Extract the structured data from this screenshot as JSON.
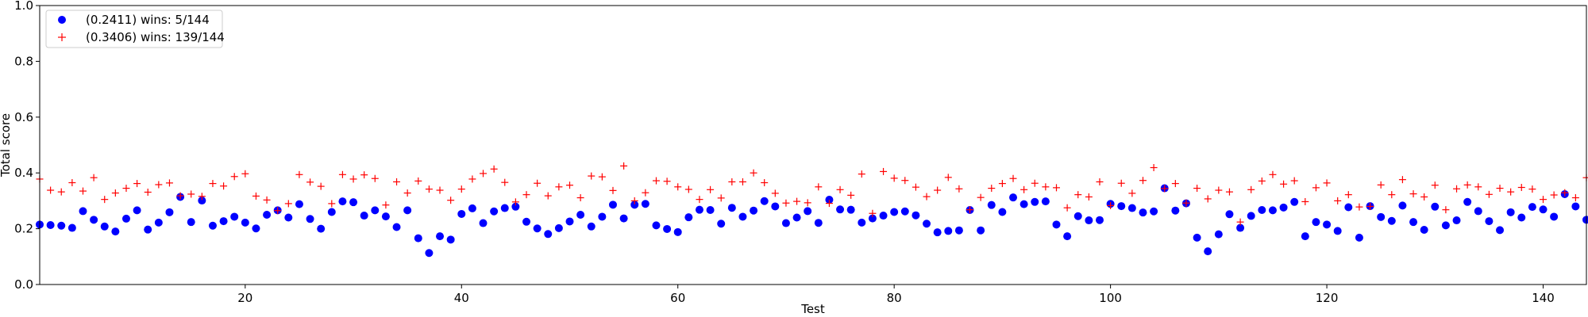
{
  "chart_data": {
    "type": "scatter",
    "title": "",
    "xlabel": "Test",
    "ylabel": "Total score",
    "xlim": [
      1,
      144
    ],
    "ylim": [
      0.0,
      1.0
    ],
    "xticks": [
      20,
      40,
      60,
      80,
      100,
      120,
      140
    ],
    "yticks": [
      0.0,
      0.2,
      0.4,
      0.6,
      0.8,
      1.0
    ],
    "xtick_labels": [
      "20",
      "40",
      "60",
      "80",
      "100",
      "120",
      "140"
    ],
    "ytick_labels": [
      "0.0",
      "0.2",
      "0.4",
      "0.6",
      "0.8",
      "1.0"
    ],
    "grid": false,
    "legend_position": "top-left",
    "series": [
      {
        "name": "(0.2411) wins: 5/144",
        "marker": "circle",
        "color": "#0000ff",
        "values": [
          0.215,
          0.213,
          0.211,
          0.203,
          0.263,
          0.232,
          0.208,
          0.19,
          0.236,
          0.266,
          0.197,
          0.222,
          0.259,
          0.314,
          0.224,
          0.301,
          0.211,
          0.227,
          0.243,
          0.222,
          0.201,
          0.25,
          0.266,
          0.24,
          0.288,
          0.235,
          0.2,
          0.26,
          0.298,
          0.295,
          0.247,
          0.266,
          0.244,
          0.206,
          0.266,
          0.166,
          0.113,
          0.173,
          0.161,
          0.253,
          0.273,
          0.22,
          0.262,
          0.274,
          0.279,
          0.225,
          0.201,
          0.181,
          0.202,
          0.226,
          0.25,
          0.208,
          0.243,
          0.286,
          0.237,
          0.286,
          0.289,
          0.212,
          0.199,
          0.188,
          0.241,
          0.268,
          0.267,
          0.218,
          0.275,
          0.243,
          0.265,
          0.299,
          0.28,
          0.22,
          0.24,
          0.263,
          0.221,
          0.304,
          0.269,
          0.268,
          0.222,
          0.237,
          0.247,
          0.26,
          0.262,
          0.248,
          0.218,
          0.187,
          0.192,
          0.194,
          0.267,
          0.194,
          0.285,
          0.26,
          0.312,
          0.288,
          0.296,
          0.298,
          0.215,
          0.173,
          0.245,
          0.23,
          0.231,
          0.289,
          0.281,
          0.274,
          0.258,
          0.262,
          0.345,
          0.265,
          0.291,
          0.168,
          0.119,
          0.18,
          0.252,
          0.203,
          0.246,
          0.267,
          0.266,
          0.276,
          0.296,
          0.173,
          0.224,
          0.215,
          0.192,
          0.277,
          0.168,
          0.281,
          0.242,
          0.228,
          0.283,
          0.224,
          0.196,
          0.279,
          0.212,
          0.23,
          0.296,
          0.263,
          0.227,
          0.195,
          0.259,
          0.24,
          0.278,
          0.269,
          0.243,
          0.324,
          0.28,
          0.232
        ]
      },
      {
        "name": "(0.3406) wins: 139/144",
        "marker": "plus",
        "color": "#ff0000",
        "values": [
          0.378,
          0.338,
          0.332,
          0.365,
          0.335,
          0.383,
          0.305,
          0.328,
          0.345,
          0.362,
          0.331,
          0.358,
          0.364,
          0.318,
          0.324,
          0.316,
          0.362,
          0.353,
          0.387,
          0.397,
          0.317,
          0.303,
          0.265,
          0.29,
          0.394,
          0.367,
          0.352,
          0.29,
          0.394,
          0.378,
          0.393,
          0.38,
          0.285,
          0.368,
          0.328,
          0.371,
          0.342,
          0.338,
          0.302,
          0.342,
          0.378,
          0.398,
          0.414,
          0.366,
          0.296,
          0.322,
          0.363,
          0.318,
          0.35,
          0.356,
          0.311,
          0.389,
          0.386,
          0.337,
          0.425,
          0.3,
          0.329,
          0.372,
          0.37,
          0.35,
          0.341,
          0.305,
          0.34,
          0.31,
          0.368,
          0.368,
          0.4,
          0.365,
          0.327,
          0.292,
          0.298,
          0.293,
          0.35,
          0.291,
          0.34,
          0.32,
          0.396,
          0.255,
          0.405,
          0.381,
          0.373,
          0.349,
          0.315,
          0.338,
          0.384,
          0.343,
          0.268,
          0.312,
          0.345,
          0.362,
          0.38,
          0.34,
          0.363,
          0.35,
          0.347,
          0.275,
          0.322,
          0.314,
          0.368,
          0.283,
          0.363,
          0.327,
          0.373,
          0.419,
          0.344,
          0.362,
          0.292,
          0.345,
          0.307,
          0.338,
          0.332,
          0.224,
          0.34,
          0.371,
          0.394,
          0.36,
          0.372,
          0.297,
          0.347,
          0.364,
          0.3,
          0.322,
          0.278,
          0.28,
          0.357,
          0.322,
          0.376,
          0.325,
          0.314,
          0.356,
          0.268,
          0.343,
          0.357,
          0.35,
          0.323,
          0.345,
          0.332,
          0.348,
          0.342,
          0.305,
          0.321,
          0.329,
          0.311,
          0.383
        ]
      }
    ]
  }
}
